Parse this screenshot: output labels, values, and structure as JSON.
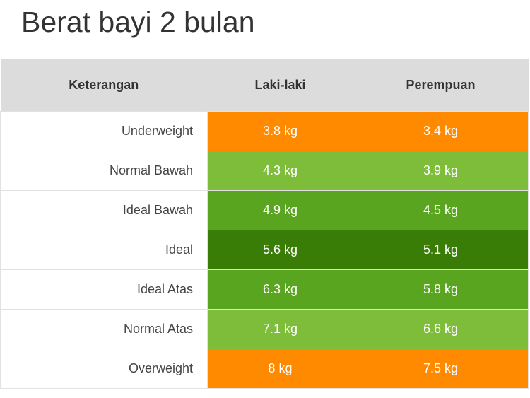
{
  "title": "Berat bayi 2 bulan",
  "table": {
    "header": [
      "Keterangan",
      "Laki-laki",
      "Perempuan"
    ],
    "rows": [
      [
        "Underweight",
        "3.8 kg",
        "3.4 kg"
      ],
      [
        "Normal Bawah",
        "4.3 kg",
        "3.9 kg"
      ],
      [
        "Ideal Bawah",
        "4.9 kg",
        "4.5 kg"
      ],
      [
        "Ideal",
        "5.6 kg",
        "5.1 kg"
      ],
      [
        "Ideal Atas",
        "6.3 kg",
        "5.8 kg"
      ],
      [
        "Normal Atas",
        "7.1 kg",
        "6.6 kg"
      ],
      [
        "Overweight",
        "8 kg",
        "7.5 kg"
      ]
    ]
  }
}
